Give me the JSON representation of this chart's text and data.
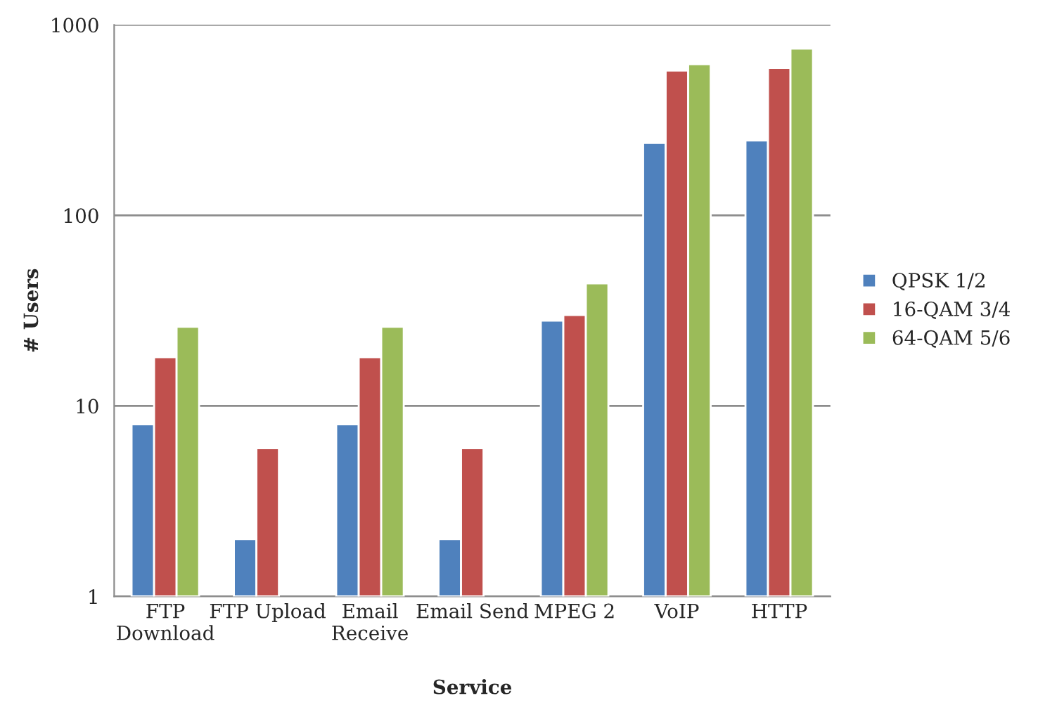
{
  "chart_data": {
    "type": "bar",
    "xlabel": "Service",
    "ylabel": "# Users",
    "categories": [
      "FTP\nDownload",
      "FTP Upload",
      "Email\nReceive",
      "Email Send",
      "MPEG 2",
      "VoIP",
      "HTTP"
    ],
    "series": [
      {
        "name": "QPSK 1/2",
        "color": "#4f81bd",
        "values": [
          8,
          2,
          8,
          2,
          28,
          240,
          247
        ]
      },
      {
        "name": "16-QAM 3/4",
        "color": "#c0504d",
        "values": [
          18,
          6,
          18,
          6,
          30,
          575,
          594
        ]
      },
      {
        "name": "64-QAM 5/6",
        "color": "#9bbb59",
        "values": [
          26,
          null,
          26,
          null,
          44,
          622,
          751
        ]
      }
    ],
    "log": true,
    "ylim": [
      1,
      1000
    ],
    "yticks": [
      1,
      10,
      100,
      1000
    ],
    "grid": "y",
    "legend": "right"
  }
}
